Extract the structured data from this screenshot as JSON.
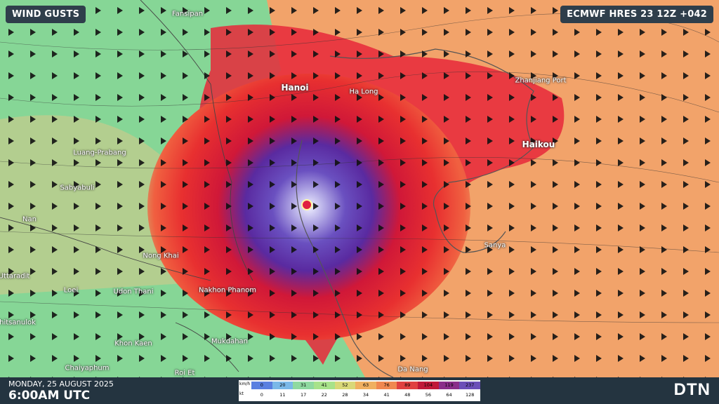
{
  "title": "WIND GUSTS",
  "model": "ECMWF HRES 23 12Z +042",
  "date": "MONDAY, 25 AUGUST 2025",
  "time": "6:00AM UTC",
  "logo": "DTN",
  "cities": [
    {
      "name": "Fansipan",
      "major": false
    },
    {
      "name": "Hanoi",
      "major": true
    },
    {
      "name": "Ha Long",
      "major": false
    },
    {
      "name": "Zhanjiang Port",
      "major": false
    },
    {
      "name": "Haikou",
      "major": true
    },
    {
      "name": "Luang-Prabang",
      "major": false
    },
    {
      "name": "Sabyabuli",
      "major": false
    },
    {
      "name": "Nan",
      "major": false
    },
    {
      "name": "Nong Khai",
      "major": false
    },
    {
      "name": "Uttaradit",
      "major": false
    },
    {
      "name": "Loei",
      "major": false
    },
    {
      "name": "Udon Thani",
      "major": false
    },
    {
      "name": "Nakhon Phanom",
      "major": false
    },
    {
      "name": "Sanya",
      "major": false
    },
    {
      "name": "Phitsanulok",
      "major": false
    },
    {
      "name": "Khon Kaen",
      "major": false
    },
    {
      "name": "Mukdahan",
      "major": false
    },
    {
      "name": "Chaiyaphum",
      "major": false
    },
    {
      "name": "Roi Et",
      "major": false
    },
    {
      "name": "Da Nang",
      "major": false
    }
  ],
  "legend": {
    "kmh_unit": "km/h",
    "kt_unit": "kt",
    "kmh": [
      "0",
      "20",
      "31",
      "41",
      "52",
      "63",
      "76",
      "89",
      "104",
      "119",
      "237"
    ],
    "kt": [
      "0",
      "11",
      "17",
      "22",
      "28",
      "34",
      "41",
      "48",
      "56",
      "64",
      "128"
    ],
    "colors": [
      "#5a7fe0",
      "#7ab8e8",
      "#8fd9a0",
      "#a8e28a",
      "#d9d878",
      "#f0b060",
      "#f08850",
      "#e04040",
      "#c01838",
      "#8a2e8a",
      "#6b4fb8",
      "#ffffff"
    ]
  },
  "colors": {
    "accent_red": "#e8283a",
    "eye_purple": "#5b3fb0",
    "land_green": "#7ed89a",
    "sea_orange": "#f2a36a"
  }
}
